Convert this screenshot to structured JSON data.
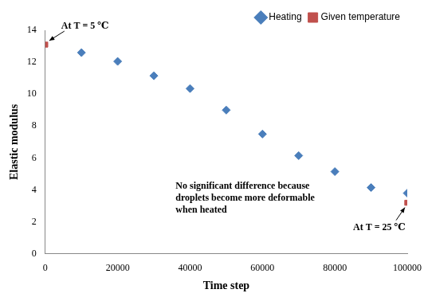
{
  "chart_data": {
    "type": "scatter",
    "x_label": "Time step",
    "y_label": "Elastic modulus",
    "series": [
      {
        "name": "Heating",
        "color": "#4a7ebb",
        "marker": "diamond",
        "x": [
          10000,
          20000,
          30000,
          40000,
          50000,
          60000,
          70000,
          80000,
          90000,
          100000
        ],
        "values": [
          12.6,
          12.05,
          11.15,
          10.35,
          9.0,
          7.5,
          6.15,
          5.15,
          4.15,
          3.8
        ]
      },
      {
        "name": "Given temperature",
        "color": "#c0504d",
        "marker": "square",
        "x": [
          0,
          100000
        ],
        "values": [
          13.1,
          3.2
        ]
      }
    ],
    "annotations": [
      "At T = 5 ℃",
      "At T = 25 ℃",
      "No significant difference because droplets become more deformable when heated"
    ],
    "xlim": [
      0,
      100000
    ],
    "xticks": [
      0,
      20000,
      40000,
      60000,
      80000,
      100000
    ],
    "ylim": [
      0,
      14
    ],
    "yticks": [
      0,
      2,
      4,
      6,
      8,
      10,
      12,
      14
    ],
    "grid": false,
    "legend": "top right"
  }
}
